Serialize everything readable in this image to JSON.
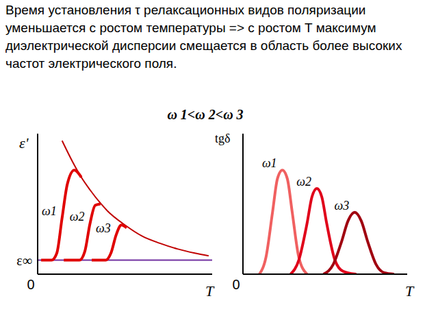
{
  "title": "Время установления τ релаксационных видов поляризации уменьшается с ростом температуры => с ростом T максимум диэлектрической дисперсии смещается в область более высоких частот электрического поля.",
  "subtitle": "ω 1<ω 2<ω 3",
  "chart_data": [
    {
      "type": "line",
      "x_label": "T",
      "y_label": "ε'",
      "xlim": [
        0,
        10
      ],
      "ylim": [
        0,
        10
      ],
      "xticks": [
        0
      ],
      "yticks": [
        {
          "value": 1,
          "label": "ε∞"
        }
      ],
      "tick_labels": true,
      "grid": false,
      "envelope": {
        "x": [
          1.4,
          2.0,
          2.5,
          3.0,
          3.6,
          4.0,
          5.0,
          6.0,
          7.0,
          8.0,
          9.0,
          9.8
        ],
        "values": [
          9.5,
          8.0,
          6.9,
          6.0,
          5.05,
          4.5,
          3.5,
          2.7,
          2.2,
          1.8,
          1.5,
          1.3
        ],
        "color": "#c00000"
      },
      "series": [
        {
          "name": "ω1",
          "color": "#e00000",
          "x": [
            0.2,
            0.8,
            1.1,
            1.4,
            1.7,
            2.1,
            2.5
          ],
          "values": [
            1,
            1,
            1.5,
            4,
            6.4,
            7.4,
            6.9
          ]
        },
        {
          "name": "ω2",
          "color": "#e00000",
          "x": [
            1.5,
            2.4,
            2.7,
            3.0,
            3.3,
            3.6
          ],
          "values": [
            1,
            1,
            1.6,
            3.6,
            4.9,
            5.0
          ]
        },
        {
          "name": "ω3",
          "color": "#e00000",
          "x": [
            3.1,
            3.9,
            4.2,
            4.5,
            4.8,
            5.1
          ],
          "values": [
            1,
            1,
            1.5,
            2.8,
            3.5,
            3.3
          ]
        }
      ]
    },
    {
      "type": "line",
      "x_label": "T",
      "y_label": "tgδ",
      "xlim": [
        0,
        10
      ],
      "ylim": [
        0,
        10
      ],
      "xticks": [
        0
      ],
      "yticks": [],
      "tick_labels": "x",
      "grid": false,
      "series": [
        {
          "name": "ω1",
          "color": "#f06060",
          "x": [
            1.0,
            1.4,
            1.8,
            2.1,
            2.4,
            2.7,
            3.0,
            3.4,
            3.9
          ],
          "values": [
            0,
            1.2,
            4.4,
            6.8,
            7.4,
            6.8,
            4.4,
            1.2,
            0
          ]
        },
        {
          "name": "ω2",
          "color": "#e0001a",
          "x": [
            2.9,
            3.4,
            3.9,
            4.2,
            4.5,
            4.8,
            5.1,
            5.6,
            6.1,
            6.9
          ],
          "values": [
            0,
            1.0,
            3.6,
            5.5,
            6.1,
            5.5,
            3.6,
            1.0,
            0.2,
            0
          ]
        },
        {
          "name": "ω3",
          "color": "#a00010",
          "x": [
            4.9,
            5.5,
            6.0,
            6.4,
            6.8,
            7.2,
            7.6,
            8.1,
            8.6,
            9.2
          ],
          "values": [
            0,
            0.7,
            2.3,
            3.8,
            4.4,
            3.8,
            2.3,
            0.7,
            0.1,
            0
          ]
        }
      ]
    }
  ]
}
